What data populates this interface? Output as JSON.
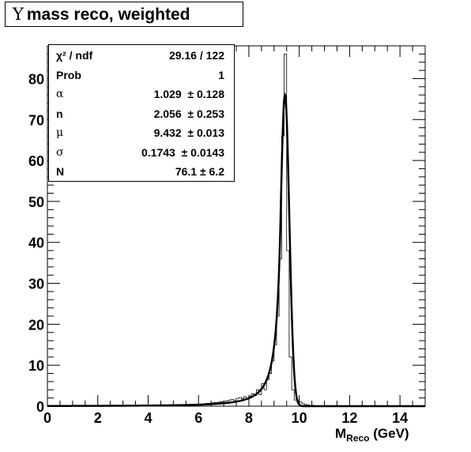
{
  "title": {
    "symbol": "Υ",
    "text": "mass reco, weighted"
  },
  "stats": [
    {
      "name": "χ² / ndf",
      "value": "29.16 / 122"
    },
    {
      "name": "Prob",
      "value": "1"
    },
    {
      "name": "α",
      "value": "1.029  ± 0.128",
      "greek": true
    },
    {
      "name": "n",
      "value": "2.056  ± 0.253"
    },
    {
      "name": "μ",
      "value": "9.432  ± 0.013",
      "greek": true
    },
    {
      "name": "σ",
      "value": "0.1743  ± 0.0143",
      "greek": true
    },
    {
      "name": "N",
      "value": "76.1 ± 6.2"
    }
  ],
  "xlabel": {
    "main": "M",
    "sub": "Reco",
    "unit": " (GeV)"
  },
  "chart_data": {
    "type": "histogram",
    "xlabel": "M_Reco (GeV)",
    "ylabel": "",
    "xlim": [
      0,
      15
    ],
    "ylim": [
      0,
      88
    ],
    "x_ticks": [
      "0",
      "2",
      "4",
      "6",
      "8",
      "10",
      "12",
      "14"
    ],
    "y_ticks": [
      "0",
      "10",
      "20",
      "30",
      "40",
      "50",
      "60",
      "70",
      "80"
    ],
    "grid": false,
    "bin_width": 0.1,
    "histogram": {
      "bin_low_edges": [
        4.0,
        4.1,
        4.2,
        4.3,
        4.4,
        4.5,
        4.6,
        4.7,
        4.8,
        4.9,
        5.0,
        5.1,
        5.2,
        5.3,
        5.4,
        5.5,
        5.6,
        5.7,
        5.8,
        5.9,
        6.0,
        6.1,
        6.2,
        6.3,
        6.4,
        6.5,
        6.6,
        6.7,
        6.8,
        6.9,
        7.0,
        7.1,
        7.2,
        7.3,
        7.4,
        7.5,
        7.6,
        7.7,
        7.8,
        7.9,
        8.0,
        8.1,
        8.2,
        8.3,
        8.4,
        8.5,
        8.6,
        8.7,
        8.8,
        8.9,
        9.0,
        9.1,
        9.2,
        9.3,
        9.4,
        9.5,
        9.6,
        9.7,
        9.8,
        9.9,
        10.0,
        10.1,
        10.2,
        10.3,
        10.4,
        10.5,
        10.6,
        10.7,
        10.8,
        10.9,
        11.0
      ],
      "counts": [
        0.1,
        0.1,
        0.1,
        0.1,
        0.1,
        0.1,
        0.1,
        0.2,
        0.1,
        0.2,
        0.2,
        0.2,
        0.2,
        0.3,
        0.3,
        0.3,
        0.4,
        0.4,
        0.4,
        0.5,
        0.5,
        0.5,
        0.6,
        0.7,
        0.7,
        0.8,
        0.9,
        0.9,
        1.0,
        1.1,
        1.2,
        1.3,
        1.5,
        1.6,
        1.5,
        1.9,
        2.1,
        1.8,
        2.3,
        1.7,
        2.5,
        3.0,
        2.6,
        4.0,
        2.8,
        5.5,
        4.0,
        6.5,
        8.0,
        11.0,
        15.0,
        22.0,
        36.0,
        66.0,
        86.0,
        38.0,
        12.0,
        4.0,
        1.5,
        1.4,
        1.0,
        0.6,
        0.4,
        0.3,
        0.2,
        0.2,
        0.1,
        0.1,
        0.1,
        0.1,
        0.1
      ]
    },
    "fit": {
      "function": "Crystal Ball",
      "chi2_ndf": "29.16 / 122",
      "prob": 1,
      "alpha": 1.029,
      "n": 2.056,
      "mu": 9.432,
      "sigma": 0.1743,
      "N": 76.1
    }
  }
}
